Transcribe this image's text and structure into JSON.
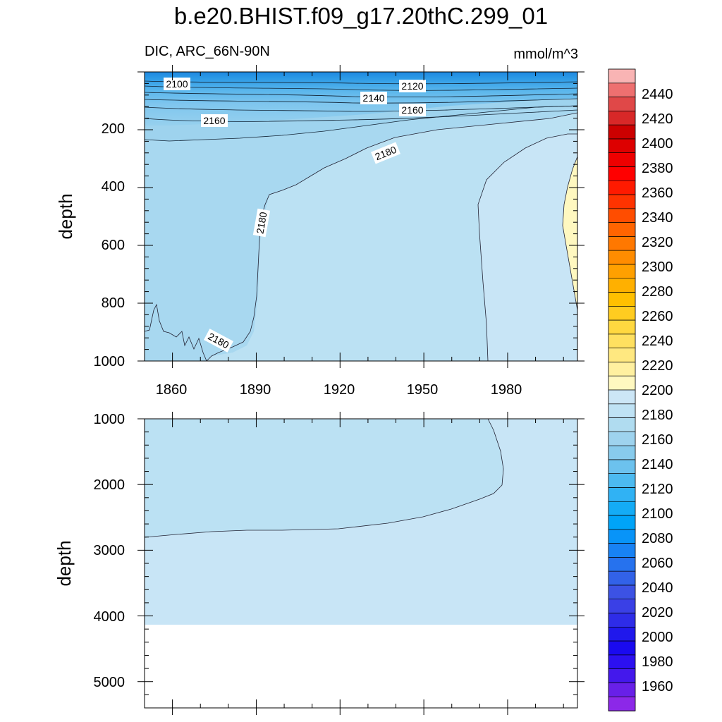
{
  "title": "b.e20.BHIST.f09_g17.20thC.299_01",
  "subtitle_left": "DIC, ARC_66N-90N",
  "subtitle_right": "mmol/m^3",
  "chart_data": {
    "type": "heatmap",
    "description_type": "depth-time contour plot, two vertical panels",
    "x_axis": {
      "ticks": [
        "1860",
        "1890",
        "1920",
        "1950",
        "1980"
      ],
      "xlim": [
        1850,
        2005
      ]
    },
    "panels": [
      {
        "name": "upper",
        "ylabel": "depth",
        "ylim": [
          0,
          1000
        ],
        "y_ticks": [
          "200",
          "400",
          "600",
          "800",
          "1000"
        ],
        "contour_labels": [
          "2100",
          "2120",
          "2140",
          "2160",
          "2160",
          "2180",
          "2180",
          "2180"
        ]
      },
      {
        "name": "lower",
        "ylabel": "depth",
        "ylim": [
          1000,
          5400
        ],
        "y_ticks": [
          "1000",
          "2000",
          "3000",
          "4000",
          "5000"
        ],
        "no_data_below": 4100
      }
    ],
    "colorbar": {
      "unit": "mmol/m^3",
      "labels": [
        "2440",
        "2420",
        "2400",
        "2380",
        "2360",
        "2340",
        "2320",
        "2300",
        "2280",
        "2260",
        "2240",
        "2220",
        "2200",
        "2180",
        "2160",
        "2140",
        "2120",
        "2100",
        "2080",
        "2060",
        "2040",
        "2020",
        "2000",
        "1980",
        "1960"
      ],
      "colors_top_to_bottom": [
        "#f9b4b4",
        "#ee7070",
        "#e04848",
        "#d82828",
        "#cc0000",
        "#dd0000",
        "#ee0000",
        "#ff0000",
        "#ff1a00",
        "#ff3300",
        "#ff4d00",
        "#ff6400",
        "#ff7800",
        "#ff8c00",
        "#ffa000",
        "#ffb000",
        "#ffc000",
        "#ffcc20",
        "#ffd840",
        "#ffe060",
        "#ffe880",
        "#fff0a0",
        "#fff8c0",
        "#cce6f6",
        "#bfe2f4",
        "#b0dcf0",
        "#9ed3ee",
        "#88cbec",
        "#6cc2ee",
        "#4cbaf0",
        "#30b2f4",
        "#14acf6",
        "#00a4f8",
        "#0894f8",
        "#1882f4",
        "#2672ee",
        "#3262e8",
        "#3c52e4",
        "#3a40e6",
        "#2e2ce8",
        "#2018ec",
        "#1a0af0",
        "#2c10f0",
        "#4418ec",
        "#6820e8",
        "#8c28e8"
      ]
    },
    "colors": {
      "surface_dark": "#1e90e6",
      "band_2160": "#9ed3ee",
      "band_2170": "#a8d8f0",
      "band_2180": "#bbe1f3",
      "band_2190": "#c8e5f6",
      "band_2200": "#fff8c0"
    }
  }
}
